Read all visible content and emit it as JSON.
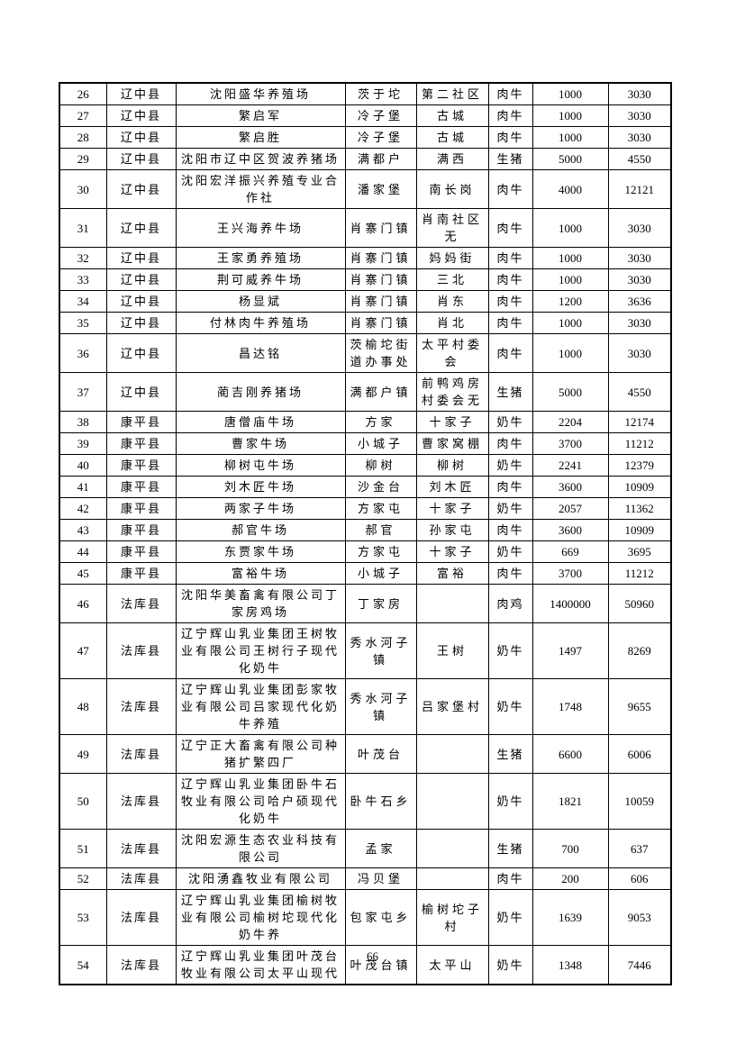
{
  "page": {
    "number": "66"
  },
  "table": {
    "columns": [
      "index",
      "county",
      "name",
      "town",
      "village",
      "livestock",
      "quantity",
      "amount"
    ],
    "rows": [
      [
        "26",
        "辽中县",
        "沈阳盛华养殖场",
        "茨于坨",
        "第二社区",
        "肉牛",
        "1000",
        "3030"
      ],
      [
        "27",
        "辽中县",
        "繁启军",
        "冷子堡",
        "古城",
        "肉牛",
        "1000",
        "3030"
      ],
      [
        "28",
        "辽中县",
        "繁启胜",
        "冷子堡",
        "古城",
        "肉牛",
        "1000",
        "3030"
      ],
      [
        "29",
        "辽中县",
        "沈阳市辽中区贺波养猪场",
        "满都户",
        "满西",
        "生猪",
        "5000",
        "4550"
      ],
      [
        "30",
        "辽中县",
        "沈阳宏洋振兴养殖专业合作社",
        "潘家堡",
        "南长岗",
        "肉牛",
        "4000",
        "12121"
      ],
      [
        "31",
        "辽中县",
        "王兴海养牛场",
        "肖寨门镇",
        "肖南社区无",
        "肉牛",
        "1000",
        "3030"
      ],
      [
        "32",
        "辽中县",
        "王家勇养殖场",
        "肖寨门镇",
        "妈妈街",
        "肉牛",
        "1000",
        "3030"
      ],
      [
        "33",
        "辽中县",
        "荆可威养牛场",
        "肖寨门镇",
        "三北",
        "肉牛",
        "1000",
        "3030"
      ],
      [
        "34",
        "辽中县",
        "杨显斌",
        "肖寨门镇",
        "肖东",
        "肉牛",
        "1200",
        "3636"
      ],
      [
        "35",
        "辽中县",
        "付林肉牛养殖场",
        "肖寨门镇",
        "肖北",
        "肉牛",
        "1000",
        "3030"
      ],
      [
        "36",
        "辽中县",
        "昌达铭",
        "茨榆坨街道办事处",
        "太平村委会",
        "肉牛",
        "1000",
        "3030"
      ],
      [
        "37",
        "辽中县",
        "蔺吉刚养猪场",
        "满都户镇",
        "前鸭鸡房村委会无",
        "生猪",
        "5000",
        "4550"
      ],
      [
        "38",
        "康平县",
        "唐僧庙牛场",
        "方家",
        "十家子",
        "奶牛",
        "2204",
        "12174"
      ],
      [
        "39",
        "康平县",
        "曹家牛场",
        "小城子",
        "曹家窝棚",
        "肉牛",
        "3700",
        "11212"
      ],
      [
        "40",
        "康平县",
        "柳树屯牛场",
        "柳树",
        "柳树",
        "奶牛",
        "2241",
        "12379"
      ],
      [
        "41",
        "康平县",
        "刘木匠牛场",
        "沙金台",
        "刘木匠",
        "肉牛",
        "3600",
        "10909"
      ],
      [
        "42",
        "康平县",
        "两家子牛场",
        "方家屯",
        "十家子",
        "奶牛",
        "2057",
        "11362"
      ],
      [
        "43",
        "康平县",
        "郝官牛场",
        "郝官",
        "孙家屯",
        "肉牛",
        "3600",
        "10909"
      ],
      [
        "44",
        "康平县",
        "东贾家牛场",
        "方家屯",
        "十家子",
        "奶牛",
        "669",
        "3695"
      ],
      [
        "45",
        "康平县",
        "富裕牛场",
        "小城子",
        "富裕",
        "肉牛",
        "3700",
        "11212"
      ],
      [
        "46",
        "法库县",
        "沈阳华美畜禽有限公司丁家房鸡场",
        "丁家房",
        "",
        "肉鸡",
        "1400000",
        "50960"
      ],
      [
        "47",
        "法库县",
        "辽宁辉山乳业集团王树牧业有限公司王树行子现代化奶牛",
        "秀水河子镇",
        "王树",
        "奶牛",
        "1497",
        "8269"
      ],
      [
        "48",
        "法库县",
        "辽宁辉山乳业集团彭家牧业有限公司吕家现代化奶牛养殖",
        "秀水河子镇",
        "吕家堡村",
        "奶牛",
        "1748",
        "9655"
      ],
      [
        "49",
        "法库县",
        "辽宁正大畜禽有限公司种猪扩繁四厂",
        "叶茂台",
        "",
        "生猪",
        "6600",
        "6006"
      ],
      [
        "50",
        "法库县",
        "辽宁辉山乳业集团卧牛石牧业有限公司哈户硕现代化奶牛",
        "卧牛石乡",
        "",
        "奶牛",
        "1821",
        "10059"
      ],
      [
        "51",
        "法库县",
        "沈阳宏源生态农业科技有限公司",
        "孟家",
        "",
        "生猪",
        "700",
        "637"
      ],
      [
        "52",
        "法库县",
        "沈阳湧鑫牧业有限公司",
        "冯贝堡",
        "",
        "肉牛",
        "200",
        "606"
      ],
      [
        "53",
        "法库县",
        "辽宁辉山乳业集团榆树牧业有限公司榆树坨现代化奶牛养",
        "包家屯乡",
        "榆树坨子村",
        "奶牛",
        "1639",
        "9053"
      ],
      [
        "54",
        "法库县",
        "辽宁辉山乳业集团叶茂台牧业有限公司太平山现代",
        "叶茂台镇",
        "太平山",
        "奶牛",
        "1348",
        "7446"
      ]
    ]
  }
}
